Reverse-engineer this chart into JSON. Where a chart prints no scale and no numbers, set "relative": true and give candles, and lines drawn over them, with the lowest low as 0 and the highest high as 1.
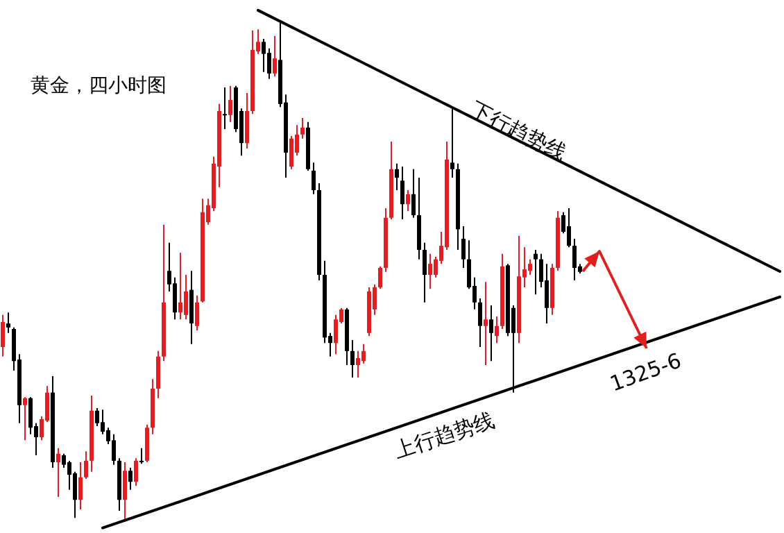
{
  "chart_data": {
    "type": "candlestick",
    "title": "黄金，四小时图",
    "relative": true,
    "categories": [
      null,
      null,
      null,
      null,
      null,
      null,
      null,
      null,
      null,
      null,
      null,
      null,
      null,
      null,
      null,
      null,
      null,
      null,
      null,
      null,
      null,
      null,
      null,
      null,
      null,
      null,
      null,
      null,
      null,
      null,
      null,
      null,
      null,
      null,
      null,
      null,
      null,
      null,
      null,
      null,
      null,
      null,
      null,
      null,
      null,
      null,
      null,
      null,
      null,
      null,
      null,
      null,
      null,
      null,
      null,
      null,
      null,
      null,
      null,
      null,
      null,
      null,
      null,
      null,
      null,
      null,
      null,
      null,
      null,
      null,
      null,
      null,
      null,
      null,
      null,
      null,
      null,
      null,
      null,
      null,
      null,
      null,
      null,
      null,
      null,
      null,
      null,
      null,
      null,
      null,
      null,
      null,
      null,
      null,
      null,
      null,
      null,
      null,
      null,
      null,
      null,
      null,
      null,
      null,
      null,
      null,
      null,
      null,
      null,
      null,
      null,
      null,
      null,
      null,
      null,
      null,
      null,
      null,
      null,
      null,
      null,
      null,
      null,
      null,
      null,
      null,
      null,
      null,
      null,
      null,
      null,
      null,
      null,
      null,
      null,
      null,
      null,
      null,
      null,
      null,
      null
    ],
    "ohlc": [
      [
        0.349,
        0.413,
        0.33,
        0.399
      ],
      [
        0.396,
        0.418,
        0.377,
        0.388
      ],
      [
        0.385,
        0.388,
        0.302,
        0.321
      ],
      [
        0.324,
        0.335,
        0.197,
        0.233
      ],
      [
        0.233,
        0.249,
        0.163,
        0.247
      ],
      [
        0.247,
        0.249,
        0.175,
        0.188
      ],
      [
        0.191,
        0.197,
        0.133,
        0.169
      ],
      [
        0.169,
        0.211,
        0.163,
        0.205
      ],
      [
        0.202,
        0.271,
        0.199,
        0.258
      ],
      [
        0.258,
        0.291,
        0.108,
        0.119
      ],
      [
        0.119,
        0.147,
        0.05,
        0.136
      ],
      [
        0.133,
        0.136,
        0.108,
        0.114
      ],
      [
        0.119,
        0.122,
        0.064,
        0.094
      ],
      [
        0.097,
        0.1,
        0.008,
        0.044
      ],
      [
        0.044,
        0.119,
        0.025,
        0.089
      ],
      [
        0.089,
        0.141,
        0.086,
        0.122
      ],
      [
        0.122,
        0.252,
        0.1,
        0.222
      ],
      [
        0.222,
        0.227,
        0.191,
        0.197
      ],
      [
        0.199,
        0.224,
        0.175,
        0.18
      ],
      [
        0.183,
        0.188,
        0.155,
        0.161
      ],
      [
        0.163,
        0.175,
        0.114,
        0.122
      ],
      [
        0.122,
        0.127,
        0.022,
        0.044
      ],
      [
        0.044,
        0.119,
        0.0,
        0.102
      ],
      [
        0.102,
        0.108,
        0.064,
        0.08
      ],
      [
        0.08,
        0.127,
        0.072,
        0.122
      ],
      [
        0.122,
        0.147,
        0.116,
        0.119
      ],
      [
        0.122,
        0.194,
        0.119,
        0.188
      ],
      [
        0.188,
        0.285,
        0.175,
        0.266
      ],
      [
        0.266,
        0.341,
        0.247,
        0.33
      ],
      [
        0.33,
        0.593,
        0.321,
        0.438
      ],
      [
        0.501,
        0.557,
        0.46,
        0.474
      ],
      [
        0.476,
        0.488,
        0.404,
        0.418
      ],
      [
        0.418,
        0.537,
        0.404,
        0.438
      ],
      [
        0.413,
        0.493,
        0.404,
        0.46
      ],
      [
        0.463,
        0.501,
        0.355,
        0.396
      ],
      [
        0.391,
        0.452,
        0.382,
        0.438
      ],
      [
        0.44,
        0.645,
        0.438,
        0.618
      ],
      [
        0.598,
        0.645,
        0.593,
        0.632
      ],
      [
        0.626,
        0.729,
        0.62,
        0.715
      ],
      [
        0.709,
        0.834,
        0.668,
        0.82
      ],
      [
        0.814,
        0.867,
        0.784,
        0.812
      ],
      [
        0.812,
        0.87,
        0.798,
        0.842
      ],
      [
        0.867,
        0.87,
        0.778,
        0.784
      ],
      [
        0.82,
        0.825,
        0.731,
        0.756
      ],
      [
        0.756,
        0.856,
        0.745,
        0.82
      ],
      [
        0.82,
        0.981,
        0.814,
        0.942
      ],
      [
        0.939,
        0.983,
        0.934,
        0.958
      ],
      [
        0.958,
        0.964,
        0.898,
        0.934
      ],
      [
        0.936,
        0.945,
        0.884,
        0.895
      ],
      [
        0.895,
        0.97,
        0.889,
        0.925
      ],
      [
        0.922,
        1.0,
        0.828,
        0.834
      ],
      [
        0.837,
        0.853,
        0.687,
        0.737
      ],
      [
        0.709,
        0.77,
        0.704,
        0.765
      ],
      [
        0.737,
        0.792,
        0.731,
        0.773
      ],
      [
        0.773,
        0.806,
        0.765,
        0.787
      ],
      [
        0.787,
        0.798,
        0.701,
        0.704
      ],
      [
        0.701,
        0.717,
        0.654,
        0.662
      ],
      [
        0.662,
        0.676,
        0.482,
        0.493
      ],
      [
        0.493,
        0.521,
        0.357,
        0.368
      ],
      [
        0.371,
        0.377,
        0.33,
        0.357
      ],
      [
        0.357,
        0.413,
        0.335,
        0.404
      ],
      [
        0.399,
        0.427,
        0.396,
        0.424
      ],
      [
        0.424,
        0.427,
        0.313,
        0.341
      ],
      [
        0.341,
        0.363,
        0.288,
        0.313
      ],
      [
        0.313,
        0.341,
        0.288,
        0.327
      ],
      [
        0.321,
        0.355,
        0.316,
        0.341
      ],
      [
        0.377,
        0.468,
        0.371,
        0.46
      ],
      [
        0.424,
        0.474,
        0.413,
        0.468
      ],
      [
        0.468,
        0.51,
        0.465,
        0.507
      ],
      [
        0.507,
        0.626,
        0.499,
        0.607
      ],
      [
        0.607,
        0.759,
        0.604,
        0.704
      ],
      [
        0.704,
        0.715,
        0.662,
        0.687
      ],
      [
        0.681,
        0.709,
        0.604,
        0.634
      ],
      [
        0.634,
        0.662,
        0.62,
        0.654
      ],
      [
        0.654,
        0.704,
        0.607,
        0.612
      ],
      [
        0.612,
        0.687,
        0.524,
        0.543
      ],
      [
        0.543,
        0.557,
        0.438,
        0.493
      ],
      [
        0.493,
        0.535,
        0.465,
        0.515
      ],
      [
        0.493,
        0.529,
        0.488,
        0.524
      ],
      [
        0.521,
        0.579,
        0.515,
        0.551
      ],
      [
        0.548,
        0.759,
        0.543,
        0.723
      ],
      [
        0.717,
        0.825,
        0.687,
        0.704
      ],
      [
        0.704,
        0.715,
        0.543,
        0.584
      ],
      [
        0.565,
        0.59,
        0.507,
        0.524
      ],
      [
        0.524,
        0.562,
        0.465,
        0.468
      ],
      [
        0.471,
        0.488,
        0.424,
        0.438
      ],
      [
        0.438,
        0.446,
        0.349,
        0.391
      ],
      [
        0.391,
        0.479,
        0.313,
        0.404
      ],
      [
        0.404,
        0.432,
        0.321,
        0.377
      ],
      [
        0.371,
        0.41,
        0.357,
        0.391
      ],
      [
        0.391,
        0.535,
        0.385,
        0.51
      ],
      [
        0.512,
        0.515,
        0.371,
        0.377
      ],
      [
        0.427,
        0.432,
        0.258,
        0.377
      ],
      [
        0.377,
        0.571,
        0.357,
        0.49
      ],
      [
        0.488,
        0.548,
        0.468,
        0.504
      ],
      [
        0.501,
        0.524,
        0.493,
        0.515
      ],
      [
        0.535,
        0.543,
        0.454,
        0.524
      ],
      [
        0.524,
        0.535,
        0.468,
        0.479
      ],
      [
        0.482,
        0.515,
        0.396,
        0.427
      ],
      [
        0.427,
        0.515,
        0.413,
        0.507
      ],
      [
        0.507,
        0.62,
        0.501,
        0.607
      ],
      [
        0.612,
        0.618,
        0.576,
        0.579
      ],
      [
        0.59,
        0.626,
        0.548,
        0.551
      ],
      [
        0.551,
        0.565,
        0.482,
        0.507
      ],
      [
        0.51,
        0.515,
        0.496,
        0.499
      ],
      null,
      null,
      null,
      null,
      null,
      null,
      null,
      null,
      null,
      null,
      null,
      null,
      null,
      null,
      null,
      null,
      null,
      null,
      null,
      null,
      null,
      null,
      null,
      null,
      null,
      null,
      null,
      null,
      null,
      null,
      null,
      null,
      null,
      null,
      null,
      null
    ],
    "colors": [
      "#e02020",
      "#000000",
      "#000000",
      "#000000",
      "#e02020",
      "#000000",
      "#000000",
      "#e02020",
      "#e02020",
      "#000000",
      "#e02020",
      "#000000",
      "#000000",
      "#000000",
      "#e02020",
      "#e02020",
      "#e02020",
      "#000000",
      "#000000",
      "#000000",
      "#000000",
      "#000000",
      "#e02020",
      "#000000",
      "#e02020",
      "#000000",
      "#e02020",
      "#e02020",
      "#e02020",
      "#e02020",
      "#000000",
      "#000000",
      "#e02020",
      "#e02020",
      "#000000",
      "#e02020",
      "#e02020",
      "#e02020",
      "#e02020",
      "#e02020",
      "#000000",
      "#e02020",
      "#000000",
      "#000000",
      "#e02020",
      "#e02020",
      "#e02020",
      "#000000",
      "#000000",
      "#e02020",
      "#000000",
      "#000000",
      "#e02020",
      "#e02020",
      "#e02020",
      "#000000",
      "#000000",
      "#000000",
      "#000000",
      "#000000",
      "#e02020",
      "#e02020",
      "#000000",
      "#000000",
      "#e02020",
      "#e02020",
      "#e02020",
      "#e02020",
      "#e02020",
      "#e02020",
      "#e02020",
      "#000000",
      "#000000",
      "#e02020",
      "#000000",
      "#000000",
      "#000000",
      "#e02020",
      "#e02020",
      "#e02020",
      "#e02020",
      "#000000",
      "#000000",
      "#000000",
      "#000000",
      "#000000",
      "#000000",
      "#e02020",
      "#000000",
      "#e02020",
      "#e02020",
      "#000000",
      "#000000",
      "#e02020",
      "#e02020",
      "#e02020",
      "#000000",
      "#000000",
      "#000000",
      "#e02020",
      "#e02020",
      "#000000",
      "#000000",
      "#000000",
      "#000000",
      null,
      null,
      null,
      null,
      null,
      null,
      null,
      null,
      null,
      null,
      null,
      null,
      null,
      null,
      null,
      null,
      null,
      null,
      null,
      null,
      null,
      null,
      null,
      null,
      null,
      null,
      null,
      null,
      null,
      null,
      null,
      null,
      null,
      null,
      null,
      null
    ],
    "series": [
      {
        "type": "line",
        "color": "#000000",
        "marker": "none",
        "line_style": "solid",
        "values": [
          null,
          null,
          null,
          null,
          null,
          null,
          null,
          null,
          null,
          null,
          null,
          null,
          null,
          null,
          null,
          null,
          null,
          null,
          null,
          null,
          null,
          null,
          null,
          null,
          null,
          null,
          null,
          null,
          null,
          null,
          null,
          null,
          null,
          null,
          null,
          null,
          null,
          null,
          null,
          null,
          null,
          null,
          null,
          null,
          null,
          null,
          1.021,
          null,
          null,
          null,
          null,
          null,
          null,
          null,
          null,
          null,
          null,
          null,
          null,
          null,
          null,
          null,
          null,
          null,
          null,
          null,
          null,
          null,
          null,
          null,
          null,
          null,
          null,
          null,
          null,
          null,
          null,
          null,
          null,
          null,
          null,
          null,
          null,
          null,
          null,
          null,
          null,
          null,
          null,
          null,
          null,
          null,
          null,
          null,
          null,
          null,
          null,
          null,
          null,
          null,
          null,
          null,
          null,
          null,
          null,
          null,
          null,
          null,
          null,
          null,
          null,
          null,
          null,
          null,
          null,
          null,
          null,
          null,
          null,
          null,
          null,
          null,
          null,
          null,
          null,
          null,
          null,
          null,
          null,
          null,
          null,
          null,
          null,
          null,
          null,
          null,
          null,
          null,
          null,
          null,
          0.5
        ]
      },
      {
        "type": "line",
        "color": "#000000",
        "marker": "none",
        "line_style": "solid",
        "values": [
          null,
          null,
          null,
          null,
          null,
          null,
          null,
          null,
          null,
          null,
          null,
          null,
          null,
          null,
          null,
          null,
          null,
          null,
          -0.012,
          null,
          null,
          null,
          null,
          null,
          null,
          null,
          null,
          null,
          null,
          null,
          null,
          null,
          null,
          null,
          null,
          null,
          null,
          null,
          null,
          null,
          null,
          null,
          null,
          null,
          null,
          null,
          null,
          null,
          null,
          null,
          null,
          null,
          null,
          null,
          null,
          null,
          null,
          null,
          null,
          null,
          null,
          null,
          null,
          null,
          null,
          null,
          null,
          null,
          null,
          null,
          null,
          null,
          null,
          null,
          null,
          null,
          null,
          null,
          null,
          null,
          null,
          null,
          null,
          null,
          null,
          null,
          null,
          null,
          null,
          null,
          null,
          null,
          null,
          null,
          null,
          null,
          null,
          null,
          null,
          null,
          null,
          null,
          null,
          null,
          null,
          null,
          null,
          null,
          null,
          null,
          null,
          null,
          null,
          null,
          null,
          null,
          null,
          null,
          null,
          null,
          null,
          null,
          null,
          null,
          null,
          null,
          null,
          null,
          null,
          null,
          null,
          null,
          null,
          null,
          null,
          null,
          null,
          null,
          null,
          null,
          0.449
        ]
      }
    ],
    "annotations": [
      "下行趋势线",
      "上行趋势线",
      "1325-6"
    ]
  }
}
